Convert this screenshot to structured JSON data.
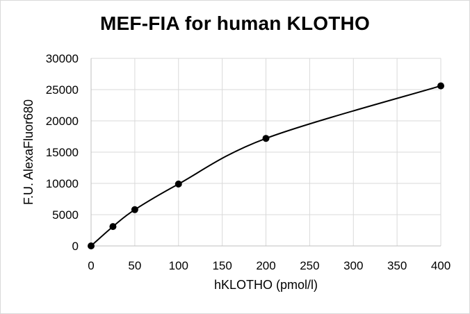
{
  "chart_data": {
    "type": "scatter",
    "title": "MEF-FIA for human KLOTHO",
    "xlabel": "hKLOTHO (pmol/l)",
    "ylabel": "F.U. AlexaFluor680",
    "xlim": [
      0,
      400
    ],
    "ylim": [
      0,
      30000
    ],
    "x_ticks": [
      "0",
      "50",
      "100",
      "150",
      "200",
      "250",
      "300",
      "350",
      "400"
    ],
    "y_ticks": [
      "0",
      "5000",
      "10000",
      "15000",
      "20000",
      "25000",
      "30000"
    ],
    "grid": true,
    "legend": "none",
    "series": [
      {
        "x": [
          0,
          25,
          50,
          100,
          200,
          400
        ],
        "y": [
          0,
          3100,
          5800,
          9900,
          17200,
          25600
        ],
        "color": "#000000",
        "marker": "circle",
        "trendline": "smooth-saturating"
      }
    ]
  }
}
